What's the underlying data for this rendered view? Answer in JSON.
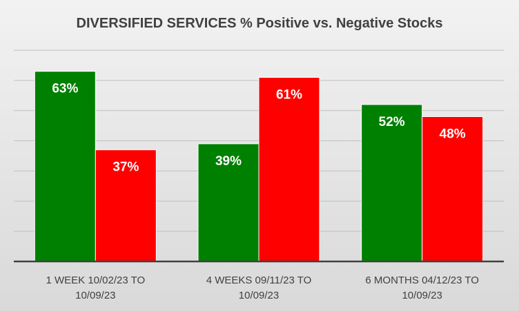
{
  "chart_data": {
    "type": "bar",
    "title": "DIVERSIFIED SERVICES % Positive vs. Negative Stocks",
    "categories": [
      [
        "1 WEEK 10/02/23 TO",
        "10/09/23"
      ],
      [
        "4 WEEKS 09/11/23 TO",
        "10/09/23"
      ],
      [
        "6 MONTHS 04/12/23 TO",
        "10/09/23"
      ]
    ],
    "series": [
      {
        "name": "Positive",
        "color": "#008000",
        "values": [
          63,
          39,
          52
        ],
        "labels": [
          "63%",
          "39%",
          "52%"
        ]
      },
      {
        "name": "Negative",
        "color": "#ff0000",
        "values": [
          37,
          61,
          48
        ],
        "labels": [
          "37%",
          "61%",
          "48%"
        ]
      }
    ],
    "ylim": [
      0,
      70
    ],
    "grid": true,
    "xlabel": "",
    "ylabel": ""
  }
}
